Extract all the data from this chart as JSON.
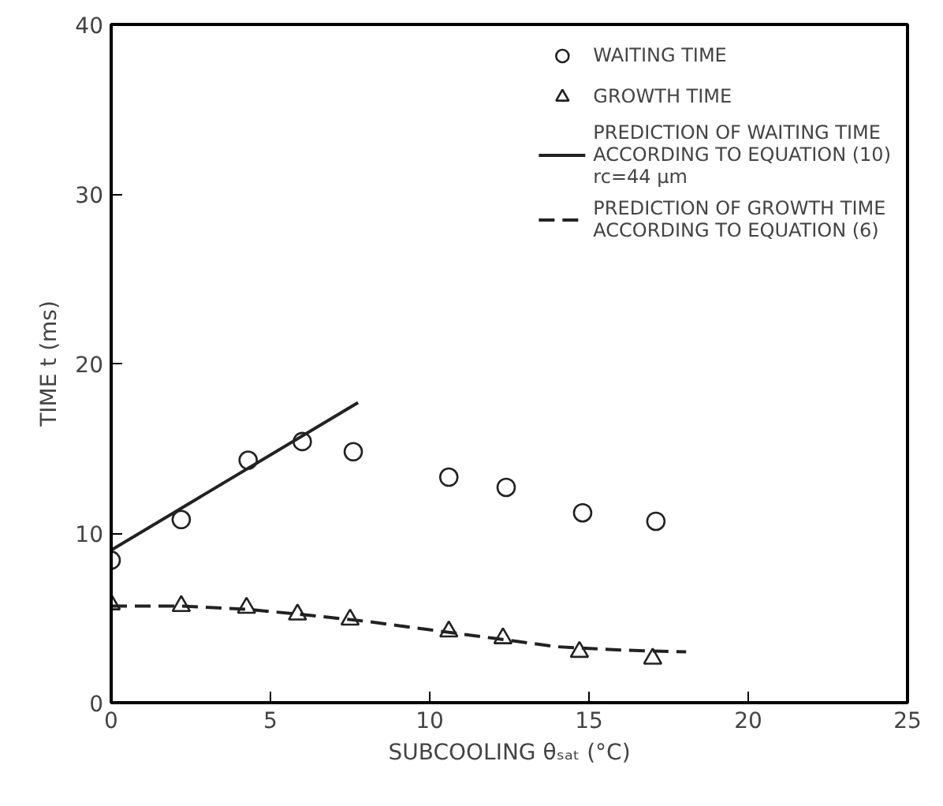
{
  "chart_data": {
    "type": "scatter",
    "xlabel": "SUBCOOLING θₛₐₜ (°C)",
    "ylabel": "TIME t (ms)",
    "xlim": [
      0,
      25
    ],
    "ylim": [
      0,
      40
    ],
    "xticks": [
      0,
      5,
      10,
      15,
      20,
      25
    ],
    "yticks": [
      0,
      10,
      20,
      30,
      40
    ],
    "grid": false,
    "legend": "top right",
    "series": [
      {
        "name": "WAITING TIME",
        "marker": "circle",
        "color": "#222222",
        "x": [
          0,
          2.2,
          4.3,
          6.0,
          7.6,
          10.6,
          12.4,
          14.8,
          17.1
        ],
        "values": [
          8.4,
          10.8,
          14.3,
          15.4,
          14.8,
          13.3,
          12.7,
          11.2,
          10.7
        ]
      },
      {
        "name": "GROWTH TIME",
        "marker": "triangle",
        "color": "#222222",
        "x": [
          0,
          2.2,
          4.25,
          5.85,
          7.5,
          10.6,
          12.3,
          14.7,
          17.0
        ],
        "values": [
          5.8,
          5.7,
          5.6,
          5.2,
          4.9,
          4.2,
          3.8,
          3.0,
          2.6
        ]
      },
      {
        "name": "PREDICTION OF WAITING TIME ACCORDING TO EQUATION (10) rc=44 μm",
        "type": "line",
        "line_style": "solid",
        "color": "#222222",
        "x": [
          0,
          7.75
        ],
        "values": [
          9.0,
          17.7
        ]
      },
      {
        "name": "PREDICTION OF GROWTH TIME ACCORDING TO EQUATION (6)",
        "type": "line",
        "line_style": "dashed",
        "color": "#222222",
        "x": [
          0,
          2.2,
          4.3,
          6,
          8,
          10,
          12,
          14,
          16,
          18.05
        ],
        "values": [
          5.7,
          5.7,
          5.5,
          5.2,
          4.8,
          4.3,
          3.8,
          3.3,
          3.1,
          3.0
        ]
      }
    ]
  }
}
